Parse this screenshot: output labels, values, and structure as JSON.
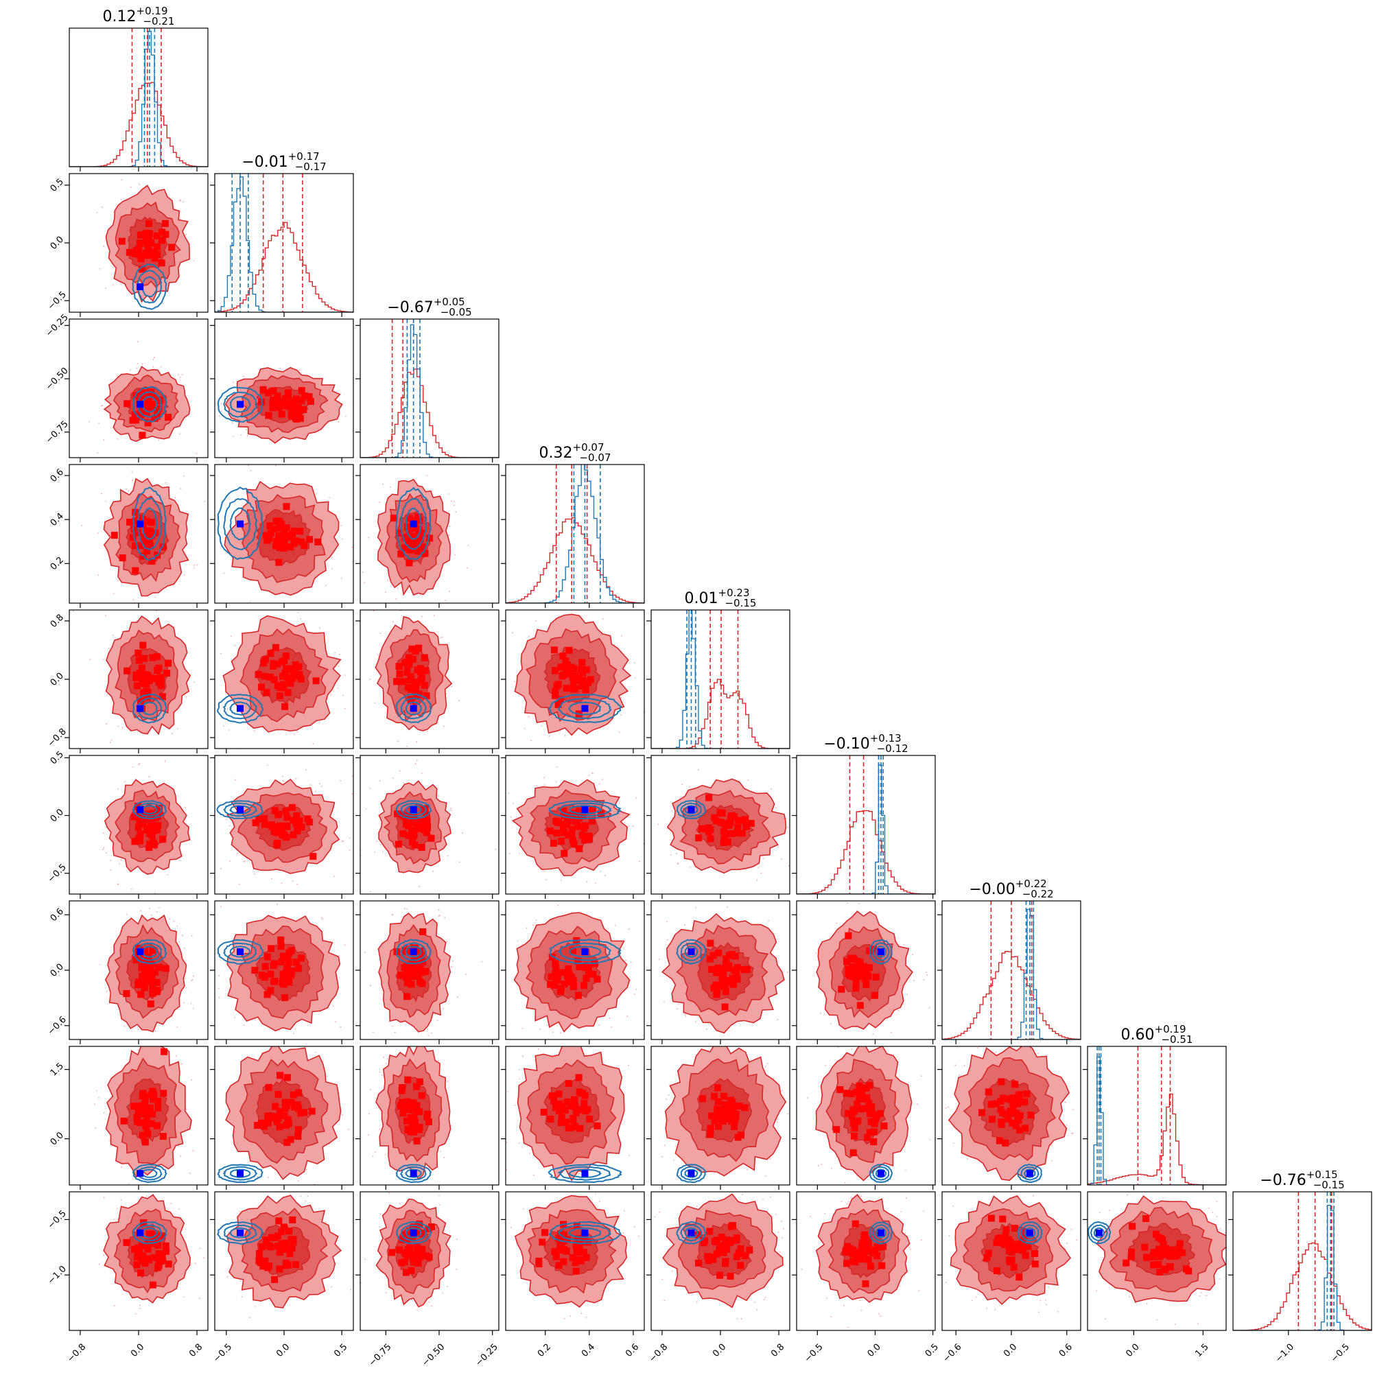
{
  "figure": {
    "kind": "corner-plot"
  },
  "colors": {
    "red_series": "#d62728",
    "red_fill_light": "#f2a3a3",
    "red_fill_mid": "#e26a6a",
    "red_fill_dark": "#d93a3a",
    "red_markers": "#ff0000",
    "blue_series": "#1f77b4",
    "truth_marker": "#0000ff"
  },
  "chart_data": {
    "type": "corner",
    "dimensions": 9,
    "params": [
      {
        "median": "0.12",
        "plus": "0.19",
        "minus": "0.21",
        "label": "",
        "range": [
          -0.95,
          0.95
        ],
        "ticks": [
          "-0.8",
          "0.0",
          "0.8"
        ],
        "tick_values": [
          -0.8,
          0.0,
          0.8
        ]
      },
      {
        "median": "-0.01",
        "plus": "0.17",
        "minus": "0.17",
        "label": "",
        "range": [
          -0.6,
          0.6
        ],
        "ticks": [
          "-0.5",
          "0.0",
          "0.5"
        ],
        "tick_values": [
          -0.5,
          0.0,
          0.5
        ]
      },
      {
        "median": "-0.67",
        "plus": "0.05",
        "minus": "0.05",
        "label": "",
        "range": [
          -0.87,
          -0.22
        ],
        "ticks": [
          "-0.75",
          "-0.50",
          "-0.25"
        ],
        "tick_values": [
          -0.75,
          -0.5,
          -0.25
        ]
      },
      {
        "median": "0.32",
        "plus": "0.07",
        "minus": "0.07",
        "label": "",
        "range": [
          0.02,
          0.65
        ],
        "ticks": [
          "0.2",
          "0.4",
          "0.6"
        ],
        "tick_values": [
          0.2,
          0.4,
          0.6
        ]
      },
      {
        "median": "0.01",
        "plus": "0.23",
        "minus": "0.15",
        "label": "",
        "range": [
          -0.95,
          0.95
        ],
        "ticks": [
          "-0.8",
          "0.0",
          "0.8"
        ],
        "tick_values": [
          -0.8,
          0.0,
          0.8
        ]
      },
      {
        "median": "-0.10",
        "plus": "0.13",
        "minus": "0.12",
        "label": "",
        "range": [
          -0.68,
          0.52
        ],
        "ticks": [
          "-0.5",
          "0.0",
          "0.5"
        ],
        "tick_values": [
          -0.5,
          0.0,
          0.5
        ]
      },
      {
        "median": "-0.00",
        "plus": "0.22",
        "minus": "0.22",
        "label": "",
        "range": [
          -0.75,
          0.75
        ],
        "ticks": [
          "-0.6",
          "0.0",
          "0.6"
        ],
        "tick_values": [
          -0.6,
          0.0,
          0.6
        ]
      },
      {
        "median": "0.60",
        "plus": "0.19",
        "minus": "0.51",
        "label": "",
        "range": [
          -1.0,
          2.0
        ],
        "ticks": [
          "0.0",
          "1.5"
        ],
        "tick_values": [
          0.0,
          1.5
        ]
      },
      {
        "median": "-0.76",
        "plus": "0.15",
        "minus": "0.15",
        "label": "",
        "range": [
          -1.5,
          -0.25
        ],
        "ticks": [
          "-1.0",
          "-0.5"
        ],
        "tick_values": [
          -1.0,
          -0.5
        ]
      }
    ],
    "y_axis_ticks": [
      null,
      {
        "labels": [
          "-0.5",
          "0.0",
          "0.5"
        ],
        "values": [
          -0.5,
          0.0,
          0.5
        ]
      },
      {
        "labels": [
          "-0.75",
          "-0.50",
          "-0.25"
        ],
        "values": [
          -0.75,
          -0.5,
          -0.25
        ]
      },
      {
        "labels": [
          "0.2",
          "0.4",
          "0.6"
        ],
        "values": [
          0.2,
          0.4,
          0.6
        ]
      },
      {
        "labels": [
          "-0.8",
          "0.0",
          "0.8"
        ],
        "values": [
          -0.8,
          0.0,
          0.8
        ]
      },
      {
        "labels": [
          "-0.5",
          "0.0",
          "0.5"
        ],
        "values": [
          -0.5,
          0.0,
          0.5
        ]
      },
      {
        "labels": [
          "-0.6",
          "0.0",
          "0.6"
        ],
        "values": [
          -0.6,
          0.0,
          0.6
        ]
      },
      {
        "labels": [
          "0.0",
          "1.5"
        ],
        "values": [
          0.0,
          1.5
        ]
      },
      {
        "labels": [
          "-1.0",
          "-0.5"
        ],
        "values": [
          -1.0,
          -0.5
        ]
      }
    ],
    "series": [
      {
        "role": "red posterior (filled contours, histograms)",
        "color": "#d62728",
        "centers": [
          0.12,
          -0.01,
          -0.62,
          0.32,
          0.05,
          -0.1,
          -0.02,
          0.6,
          -0.78
        ],
        "sigmas": [
          0.2,
          0.17,
          0.06,
          0.09,
          0.28,
          0.14,
          0.22,
          0.5,
          0.17
        ]
      },
      {
        "role": "blue posterior (line contours, histograms)",
        "color": "#1f77b4",
        "centers": [
          0.15,
          -0.38,
          -0.62,
          0.38,
          -0.4,
          0.05,
          0.2,
          -0.75,
          -0.62
        ],
        "sigmas": [
          0.07,
          0.06,
          0.025,
          0.05,
          0.06,
          0.02,
          0.04,
          0.05,
          0.03
        ]
      }
    ],
    "truth": [
      0.02,
      -0.38,
      -0.62,
      0.38,
      -0.4,
      0.05,
      0.2,
      -0.75,
      -0.62
    ],
    "red_quantile_lines": [
      [
        -0.09,
        0.12,
        0.31
      ],
      [
        -0.18,
        -0.01,
        0.16
      ],
      [
        -0.72,
        -0.67,
        -0.62
      ],
      [
        0.25,
        0.32,
        0.39
      ],
      [
        -0.14,
        0.01,
        0.24
      ],
      [
        -0.22,
        -0.1,
        0.03
      ],
      [
        -0.22,
        0.0,
        0.22
      ],
      [
        0.09,
        0.6,
        0.79
      ],
      [
        -0.91,
        -0.76,
        -0.61
      ]
    ],
    "blue_quantile_lines": [
      [
        0.08,
        0.15,
        0.22
      ],
      [
        -0.45,
        -0.38,
        -0.31
      ],
      [
        -0.65,
        -0.62,
        -0.59
      ],
      [
        0.33,
        0.38,
        0.45
      ],
      [
        -0.46,
        -0.4,
        -0.34
      ],
      [
        0.03,
        0.05,
        0.07
      ],
      [
        0.16,
        0.2,
        0.24
      ],
      [
        -0.79,
        -0.75,
        -0.71
      ],
      [
        -0.65,
        -0.62,
        -0.59
      ]
    ]
  }
}
